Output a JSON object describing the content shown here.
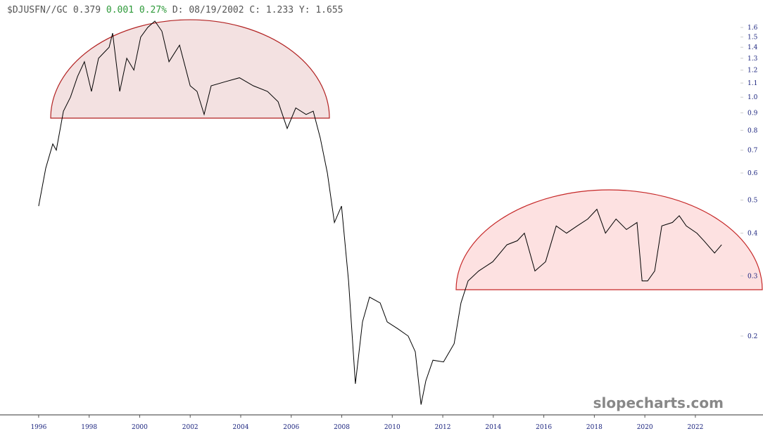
{
  "chart_data": {
    "type": "line",
    "header": [
      "$DJUSFN//GC",
      "0.379",
      "0.001",
      "0.27%",
      "D:",
      "08/19/2002",
      "C:",
      "1.233",
      "Y:",
      "1.655"
    ],
    "watermark": "slopecharts.com",
    "ylog": true,
    "xlim": [
      1994.47,
      2023.73
    ],
    "ylim": [
      0.1176,
      1.925
    ],
    "xticks": [
      1996,
      1998,
      2000,
      2002,
      2004,
      2006,
      2008,
      2010,
      2012,
      2014,
      2016,
      2018,
      2020,
      2022
    ],
    "yticks": [
      1.6,
      1.5,
      1.4,
      1.3,
      1.2,
      1.1,
      {
        "value": 1,
        "label": "1.0"
      },
      0.9,
      0.8,
      0.7,
      0.6,
      0.5,
      0.4,
      0.3,
      0.2
    ],
    "x": [
      1996.0,
      1996.28,
      1996.56,
      1996.7,
      1996.98,
      1997.26,
      1997.54,
      1997.81,
      1998.09,
      1998.37,
      1998.79,
      1998.93,
      1999.21,
      1999.49,
      1999.77,
      2000.04,
      2000.32,
      2000.6,
      2000.88,
      2001.16,
      2001.58,
      2002.0,
      2002.27,
      2002.55,
      2002.83,
      2003.39,
      2003.95,
      2004.5,
      2005.06,
      2005.48,
      2005.84,
      2006.18,
      2006.59,
      2006.87,
      2007.15,
      2007.43,
      2007.71,
      2007.99,
      2008.27,
      2008.54,
      2008.82,
      2009.1,
      2009.52,
      2009.8,
      2010.22,
      2010.63,
      2010.91,
      2011.14,
      2011.33,
      2011.61,
      2012.03,
      2012.45,
      2012.72,
      2013.0,
      2013.42,
      2013.98,
      2014.54,
      2014.95,
      2015.23,
      2015.65,
      2016.07,
      2016.49,
      2016.9,
      2017.32,
      2017.74,
      2018.1,
      2018.44,
      2018.86,
      2019.27,
      2019.69,
      2019.89,
      2020.11,
      2020.39,
      2020.67,
      2021.09,
      2021.36,
      2021.64,
      2022.06,
      2022.34,
      2022.76,
      2023.04
    ],
    "series": [
      {
        "color": "#000000",
        "values": [
          0.48,
          0.62,
          0.73,
          0.7,
          0.91,
          1.0,
          1.15,
          1.27,
          1.04,
          1.3,
          1.4,
          1.54,
          1.04,
          1.3,
          1.2,
          1.5,
          1.6,
          1.67,
          1.56,
          1.27,
          1.42,
          1.08,
          1.04,
          0.89,
          1.08,
          1.11,
          1.14,
          1.08,
          1.04,
          0.97,
          0.81,
          0.93,
          0.89,
          0.91,
          0.76,
          0.6,
          0.43,
          0.48,
          0.29,
          0.145,
          0.22,
          0.26,
          0.25,
          0.22,
          0.21,
          0.2,
          0.18,
          0.126,
          0.148,
          0.17,
          0.168,
          0.19,
          0.25,
          0.29,
          0.31,
          0.33,
          0.37,
          0.38,
          0.4,
          0.31,
          0.33,
          0.42,
          0.4,
          0.42,
          0.44,
          0.47,
          0.4,
          0.44,
          0.41,
          0.43,
          0.29,
          0.29,
          0.31,
          0.42,
          0.43,
          0.45,
          0.42,
          0.4,
          0.38,
          0.35,
          0.37
        ]
      }
    ]
  }
}
